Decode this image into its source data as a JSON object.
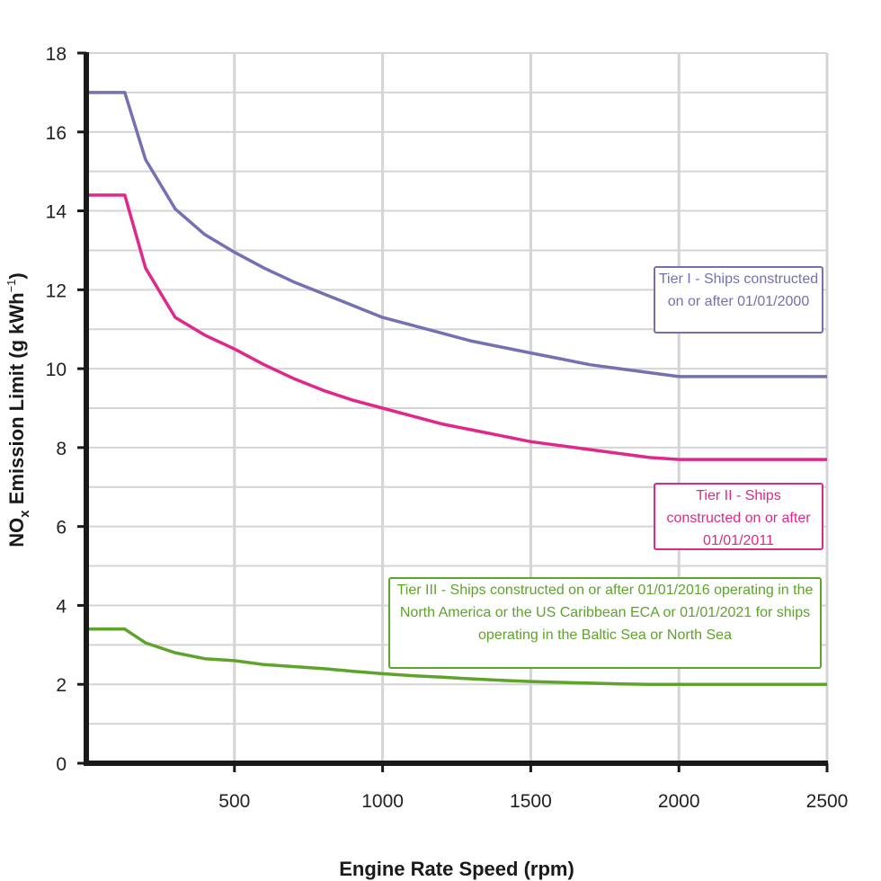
{
  "chart_data": {
    "type": "line",
    "xlabel": "Engine Rate Speed (rpm)",
    "ylabel": {
      "prefix": "NO",
      "sub": "x",
      "mid": " Emission Limit (g kWh",
      "sup": "−1",
      "suffix": ")"
    },
    "xlim": [
      0,
      2500
    ],
    "ylim": [
      0,
      18
    ],
    "x_ticks": [
      500,
      1000,
      1500,
      2000,
      2500
    ],
    "y_ticks": [
      0,
      2,
      4,
      6,
      8,
      10,
      12,
      14,
      16,
      18
    ],
    "grid": true,
    "series": [
      {
        "name": "Tier I - Ships constructed on or after 01/01/2000",
        "color": "#7470b3",
        "points": [
          [
            0,
            17.0
          ],
          [
            130,
            17.0
          ],
          [
            200,
            15.3
          ],
          [
            300,
            14.05
          ],
          [
            400,
            13.4
          ],
          [
            500,
            12.95
          ],
          [
            600,
            12.55
          ],
          [
            700,
            12.2
          ],
          [
            800,
            11.9
          ],
          [
            900,
            11.6
          ],
          [
            1000,
            11.3
          ],
          [
            1100,
            11.1
          ],
          [
            1200,
            10.9
          ],
          [
            1300,
            10.7
          ],
          [
            1400,
            10.55
          ],
          [
            1500,
            10.4
          ],
          [
            1600,
            10.25
          ],
          [
            1700,
            10.1
          ],
          [
            1800,
            10.0
          ],
          [
            1900,
            9.9
          ],
          [
            2000,
            9.8
          ],
          [
            2500,
            9.8
          ]
        ]
      },
      {
        "name": "Tier II - Ships constructed on or after 01/01/2011",
        "color": "#e0288a",
        "points": [
          [
            0,
            14.4
          ],
          [
            130,
            14.4
          ],
          [
            200,
            12.55
          ],
          [
            300,
            11.3
          ],
          [
            400,
            10.85
          ],
          [
            500,
            10.5
          ],
          [
            600,
            10.1
          ],
          [
            700,
            9.75
          ],
          [
            800,
            9.45
          ],
          [
            900,
            9.2
          ],
          [
            1000,
            9.0
          ],
          [
            1100,
            8.8
          ],
          [
            1200,
            8.6
          ],
          [
            1300,
            8.45
          ],
          [
            1400,
            8.3
          ],
          [
            1500,
            8.15
          ],
          [
            1600,
            8.05
          ],
          [
            1700,
            7.95
          ],
          [
            1800,
            7.85
          ],
          [
            1900,
            7.75
          ],
          [
            2000,
            7.7
          ],
          [
            2500,
            7.7
          ]
        ]
      },
      {
        "name": "Tier III - Ships constructed on or after 01/01/2016 operating in the North America or the US Caribbean ECA or 01/01/2021 for ships operating in the Baltic Sea or North Sea",
        "color": "#5ea32a",
        "points": [
          [
            0,
            3.4
          ],
          [
            130,
            3.4
          ],
          [
            200,
            3.05
          ],
          [
            300,
            2.8
          ],
          [
            400,
            2.65
          ],
          [
            500,
            2.6
          ],
          [
            600,
            2.5
          ],
          [
            700,
            2.45
          ],
          [
            800,
            2.4
          ],
          [
            900,
            2.33
          ],
          [
            1000,
            2.27
          ],
          [
            1100,
            2.22
          ],
          [
            1200,
            2.18
          ],
          [
            1300,
            2.14
          ],
          [
            1400,
            2.1
          ],
          [
            1500,
            2.07
          ],
          [
            1600,
            2.05
          ],
          [
            1700,
            2.03
          ],
          [
            1800,
            2.01
          ],
          [
            1900,
            2.0
          ],
          [
            2000,
            2.0
          ],
          [
            2500,
            2.0
          ]
        ]
      }
    ]
  },
  "legend": {
    "tier1": "Tier I - Ships constructed on or after 01/01/2000",
    "tier2": "Tier II - Ships constructed on or after 01/01/2011",
    "tier3": "Tier III - Ships constructed on or after 01/01/2016 operating in the North America or the US Caribbean ECA or 01/01/2021 for ships operating in the Baltic Sea or North Sea"
  }
}
